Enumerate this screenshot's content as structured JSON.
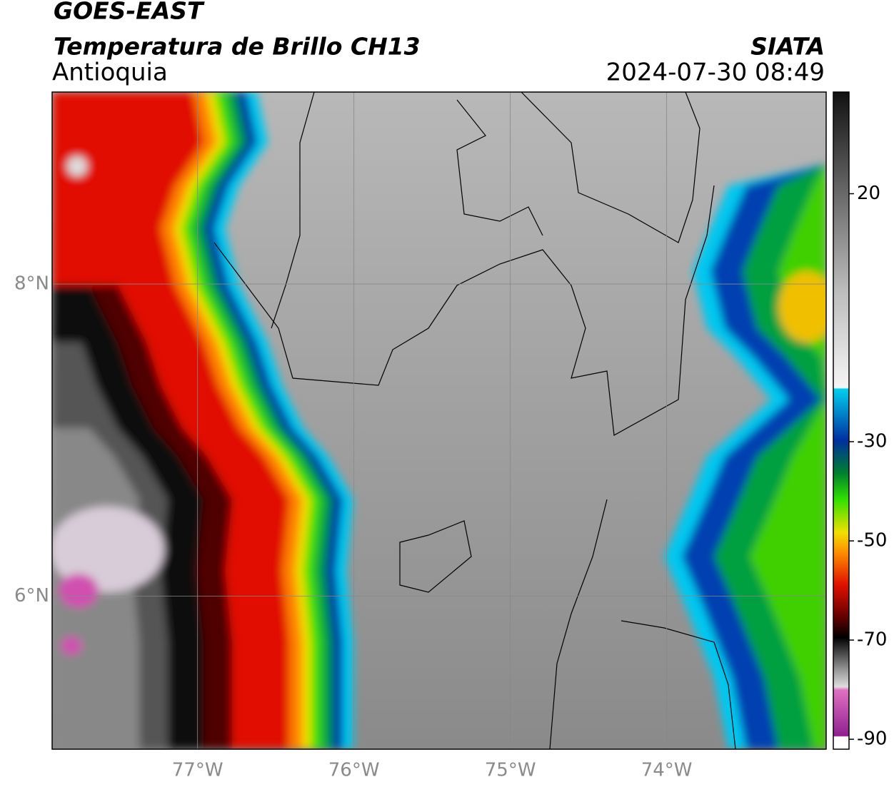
{
  "header": {
    "title": "GOES-EAST",
    "subtitle": "Temperatura de Brillo CH13",
    "region": "Antioquia",
    "source": "SIATA",
    "datetime": "2024-07-30 08:49"
  },
  "map": {
    "xlim": [
      -77.93,
      -72.98
    ],
    "ylim": [
      5.02,
      9.23
    ],
    "xticks": [
      {
        "value": -77,
        "label": "77°W"
      },
      {
        "value": -76,
        "label": "76°W"
      },
      {
        "value": -75,
        "label": "75°W"
      },
      {
        "value": -74,
        "label": "74°W"
      }
    ],
    "yticks": [
      {
        "value": 6,
        "label": "6°N"
      },
      {
        "value": 8,
        "label": "8°N"
      }
    ],
    "grid": true
  },
  "colorbar": {
    "range": [
      -92,
      40.5
    ],
    "ticks": [
      20,
      -30,
      -50,
      -70,
      -90
    ]
  }
}
